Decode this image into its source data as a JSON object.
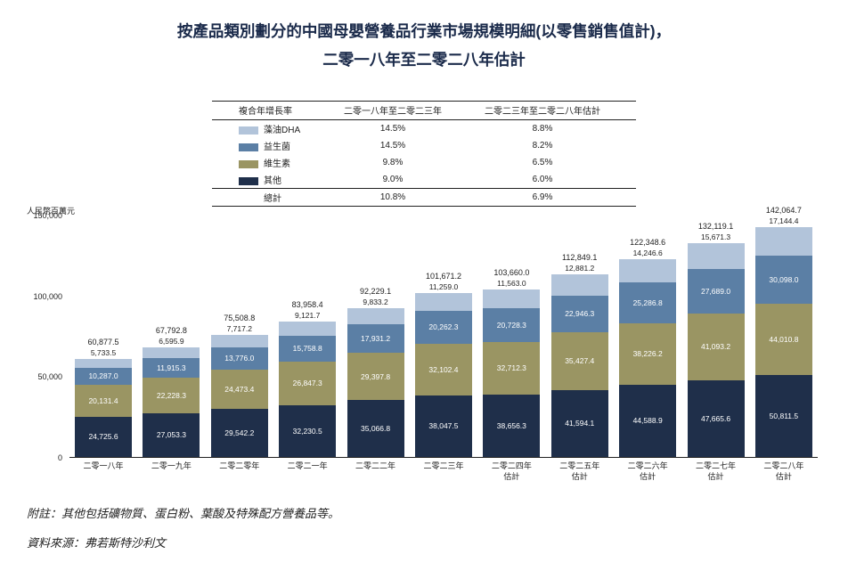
{
  "title_line1": "按產品類別劃分的中國母嬰營養品行業市場規模明細(以零售銷售值計)，",
  "title_line2": "二零一八年至二零二八年估計",
  "y_axis_title": "人民幣百萬元",
  "footnote": "附註：其他包括礦物質、蛋白粉、葉酸及特殊配方營養品等。",
  "source": "資料來源：弗若斯特沙利文",
  "colors": {
    "dha": "#b2c4da",
    "probiotics": "#5b7fa5",
    "vitamins": "#9a9563",
    "other": "#1f2f4a",
    "text_dark": "#1f2f4a",
    "bg": "#ffffff"
  },
  "legend": {
    "col_header_rate": "複合年增長率",
    "col_header_p1": "二零一八年至二零二三年",
    "col_header_p2": "二零二三年至二零二八年估計",
    "rows": [
      {
        "swatch": "dha",
        "label": "藻油DHA",
        "p1": "14.5%",
        "p2": "8.8%"
      },
      {
        "swatch": "probiotics",
        "label": "益生菌",
        "p1": "14.5%",
        "p2": "8.2%"
      },
      {
        "swatch": "vitamins",
        "label": "維生素",
        "p1": "9.8%",
        "p2": "6.5%"
      },
      {
        "swatch": "other",
        "label": "其他",
        "p1": "9.0%",
        "p2": "6.0%"
      }
    ],
    "total_label": "總計",
    "total_p1": "10.8%",
    "total_p2": "6.9%"
  },
  "chart": {
    "type": "stacked-bar",
    "ylim_max": 150000,
    "y_ticks": [
      0,
      50000,
      100000,
      150000
    ],
    "y_tick_labels": [
      "0",
      "50,000",
      "100,000",
      "150,000"
    ],
    "segment_order_bottom_to_top": [
      "other",
      "vitamins",
      "probiotics",
      "dha"
    ],
    "categories": [
      {
        "x_label": "二零一八年",
        "total": "60,877.5",
        "segments": {
          "other": "24,725.6",
          "vitamins": "20,131.4",
          "probiotics": "10,287.0",
          "dha": "5,733.5"
        },
        "values": {
          "other": 24725.6,
          "vitamins": 20131.4,
          "probiotics": 10287.0,
          "dha": 5733.5
        }
      },
      {
        "x_label": "二零一九年",
        "total": "67,792.8",
        "segments": {
          "other": "27,053.3",
          "vitamins": "22,228.3",
          "probiotics": "11,915.3",
          "dha": "6,595.9"
        },
        "values": {
          "other": 27053.3,
          "vitamins": 22228.3,
          "probiotics": 11915.3,
          "dha": 6595.9
        }
      },
      {
        "x_label": "二零二零年",
        "total": "75,508.8",
        "segments": {
          "other": "29,542.2",
          "vitamins": "24,473.4",
          "probiotics": "13,776.0",
          "dha": "7,717.2"
        },
        "values": {
          "other": 29542.2,
          "vitamins": 24473.4,
          "probiotics": 13776.0,
          "dha": 7717.2
        }
      },
      {
        "x_label": "二零二一年",
        "total": "83,958.4",
        "segments": {
          "other": "32,230.5",
          "vitamins": "26,847.3",
          "probiotics": "15,758.8",
          "dha": "9,121.7"
        },
        "values": {
          "other": 32230.5,
          "vitamins": 26847.3,
          "probiotics": 15758.8,
          "dha": 9121.7
        }
      },
      {
        "x_label": "二零二二年",
        "total": "92,229.1",
        "segments": {
          "other": "35,066.8",
          "vitamins": "29,397.8",
          "probiotics": "17,931.2",
          "dha": "9,833.2"
        },
        "values": {
          "other": 35066.8,
          "vitamins": 29397.8,
          "probiotics": 17931.2,
          "dha": 9833.2
        }
      },
      {
        "x_label": "二零二三年",
        "total": "101,671.2",
        "segments": {
          "other": "38,047.5",
          "vitamins": "32,102.4",
          "probiotics": "20,262.3",
          "dha": "11,259.0"
        },
        "values": {
          "other": 38047.5,
          "vitamins": 32102.4,
          "probiotics": 20262.3,
          "dha": 11259.0
        }
      },
      {
        "x_label": "二零二四年\n估計",
        "total": "103,660.0",
        "segments": {
          "other": "38,656.3",
          "vitamins": "32,712.3",
          "probiotics": "20,728.3",
          "dha": "11,563.0"
        },
        "values": {
          "other": 38656.3,
          "vitamins": 32712.3,
          "probiotics": 20728.3,
          "dha": 11563.0
        }
      },
      {
        "x_label": "二零二五年\n估計",
        "total": "112,849.1",
        "segments": {
          "other": "41,594.1",
          "vitamins": "35,427.4",
          "probiotics": "22,946.3",
          "dha": "12,881.2"
        },
        "values": {
          "other": 41594.1,
          "vitamins": 35427.4,
          "probiotics": 22946.3,
          "dha": 12881.2
        }
      },
      {
        "x_label": "二零二六年\n估計",
        "total": "122,348.6",
        "segments": {
          "other": "44,588.9",
          "vitamins": "38,226.2",
          "probiotics": "25,286.8",
          "dha": "14,246.6"
        },
        "values": {
          "other": 44588.9,
          "vitamins": 38226.2,
          "probiotics": 25286.8,
          "dha": 14246.6
        }
      },
      {
        "x_label": "二零二七年\n估計",
        "total": "132,119.1",
        "segments": {
          "other": "47,665.6",
          "vitamins": "41,093.2",
          "probiotics": "27,689.0",
          "dha": "15,671.3"
        },
        "values": {
          "other": 47665.6,
          "vitamins": 41093.2,
          "probiotics": 27689.0,
          "dha": 15671.3
        }
      },
      {
        "x_label": "二零二八年\n估計",
        "total": "142,064.7",
        "segments": {
          "other": "50,811.5",
          "vitamins": "44,010.8",
          "probiotics": "30,098.0",
          "dha": "17,144.4"
        },
        "values": {
          "other": 50811.5,
          "vitamins": 44010.8,
          "probiotics": 30098.0,
          "dha": 17144.4
        }
      }
    ]
  }
}
